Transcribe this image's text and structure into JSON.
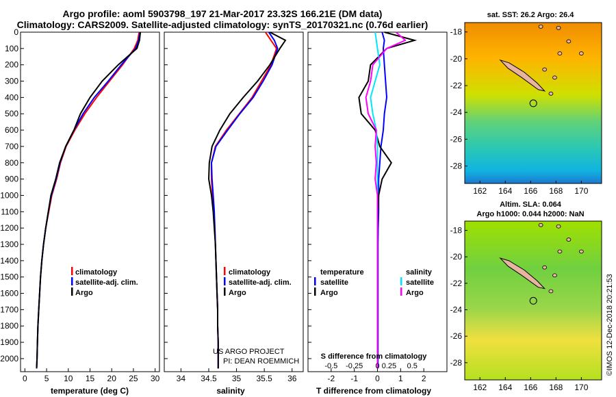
{
  "title_line1": "Argo profile: aoml 5903798_197 21-Mar-2017 23.32S 166.21E (DM data)",
  "title_line2": "Climatology: CARS2009. Satellite-adjusted climatology: synTS_20170321.nc (0.76d earlier)",
  "credit": "©IMOS 12-Dec-2018 20:21:53",
  "project": [
    "US ARGO PROJECT",
    "PI: DEAN ROEMMICH"
  ],
  "colors": {
    "climatology": "#ff0000",
    "satellite": "#0000ff",
    "argo": "#000000",
    "sat_salinity": "#00e5ff",
    "clim_salinity": "#ff00ff"
  },
  "legends": {
    "temperature": [
      "climatology",
      "satellite-adj. clim.",
      "Argo"
    ],
    "salinity": [
      "climatology",
      "satellite-adj. clim.",
      "Argo"
    ],
    "diff_left_title": "temperature",
    "diff_right_title": "salinity",
    "diff_left": [
      "satellite",
      "Argo"
    ],
    "diff_right": [
      "satellite",
      "Argo"
    ]
  },
  "diff_upper_xlabel": "S difference from climatology",
  "maps": {
    "top_title": "sat. SST: 26.2 Argo: 26.4",
    "bottom_title_1": "Altim. SLA: 0.064",
    "bottom_title_2": "Argo h1000: 0.044 h2000: NaN",
    "lon_ticks": [
      "162",
      "164",
      "166",
      "168",
      "170"
    ],
    "lat_ticks": [
      "-18",
      "-20",
      "-22",
      "-24",
      "-26",
      "-28"
    ],
    "float_lon": 166.21,
    "float_lat": -23.32
  },
  "chart_data": [
    {
      "type": "line",
      "xlabel": "temperature (deg C)",
      "ylabel": "",
      "xlim": [
        -1,
        31
      ],
      "ylim": [
        2080,
        0
      ],
      "xticks": [
        "0",
        "5",
        "10",
        "15",
        "20",
        "25",
        "30"
      ],
      "yticks": [
        "0",
        "100",
        "200",
        "300",
        "400",
        "500",
        "600",
        "700",
        "800",
        "900",
        "1000",
        "1100",
        "1200",
        "1300",
        "1400",
        "1500",
        "1600",
        "1700",
        "1800",
        "1900",
        "2000"
      ],
      "series": [
        {
          "name": "climatology",
          "color": "#ff0000",
          "x": [
            26.3,
            26.0,
            25.2,
            22.5,
            19.5,
            16.5,
            13.8,
            11.5,
            9.5,
            8.2,
            7.3,
            6.2,
            5.5,
            4.8,
            4.3,
            3.9,
            3.6,
            3.4,
            3.2,
            3.0,
            2.9,
            2.8,
            2.7
          ],
          "y": [
            0,
            50,
            100,
            200,
            300,
            400,
            500,
            600,
            700,
            800,
            900,
            1000,
            1100,
            1200,
            1300,
            1400,
            1500,
            1600,
            1700,
            1800,
            1900,
            2000,
            2060
          ]
        },
        {
          "name": "satellite-adj. clim.",
          "color": "#0000ff",
          "x": [
            26.5,
            26.2,
            25.5,
            22.2,
            19.2,
            16.0,
            13.4,
            11.3,
            9.4,
            8.1,
            7.2,
            6.1,
            5.4,
            4.8,
            4.3,
            3.9,
            3.6,
            3.4,
            3.2,
            3.0,
            2.9,
            2.8,
            2.7
          ],
          "y": [
            0,
            50,
            100,
            200,
            300,
            400,
            500,
            600,
            700,
            800,
            900,
            1000,
            1100,
            1200,
            1300,
            1400,
            1500,
            1600,
            1700,
            1800,
            1900,
            2000,
            2060
          ]
        },
        {
          "name": "Argo",
          "color": "#000000",
          "x": [
            26.6,
            26.4,
            25.8,
            21.5,
            17.8,
            15.0,
            12.8,
            11.3,
            9.4,
            8.0,
            7.1,
            6.0,
            5.4,
            4.8,
            4.3,
            3.9,
            3.6,
            3.4,
            3.2,
            3.0,
            2.9,
            2.8,
            2.7
          ],
          "y": [
            0,
            50,
            100,
            200,
            300,
            400,
            500,
            600,
            700,
            800,
            900,
            1000,
            1100,
            1200,
            1300,
            1400,
            1500,
            1600,
            1700,
            1800,
            1900,
            2000,
            2060
          ]
        }
      ]
    },
    {
      "type": "line",
      "xlabel": "salinity",
      "xlim": [
        33.7,
        36.2
      ],
      "ylim": [
        2080,
        0
      ],
      "xticks": [
        "34",
        "34.5",
        "35",
        "35.5",
        "36"
      ],
      "series": [
        {
          "name": "climatology",
          "color": "#ff0000",
          "x": [
            35.52,
            35.62,
            35.72,
            35.62,
            35.45,
            35.28,
            35.05,
            34.82,
            34.62,
            34.55,
            34.55,
            34.57,
            34.59,
            34.61,
            34.62,
            34.63,
            34.64,
            34.65,
            34.66,
            34.66,
            34.67,
            34.67,
            34.67
          ],
          "y": [
            0,
            50,
            100,
            200,
            300,
            400,
            500,
            600,
            700,
            800,
            900,
            1000,
            1100,
            1200,
            1300,
            1400,
            1500,
            1600,
            1700,
            1800,
            1900,
            2000,
            2060
          ]
        },
        {
          "name": "satellite-adj. clim.",
          "color": "#0000ff",
          "x": [
            35.58,
            35.68,
            35.74,
            35.64,
            35.48,
            35.3,
            35.06,
            34.84,
            34.63,
            34.55,
            34.56,
            34.58,
            34.6,
            34.61,
            34.62,
            34.63,
            34.64,
            34.65,
            34.66,
            34.66,
            34.67,
            34.67,
            34.67
          ],
          "y": [
            0,
            50,
            100,
            200,
            300,
            400,
            500,
            600,
            700,
            800,
            900,
            1000,
            1100,
            1200,
            1300,
            1400,
            1500,
            1600,
            1700,
            1800,
            1900,
            2000,
            2060
          ]
        },
        {
          "name": "Argo",
          "color": "#000000",
          "x": [
            35.6,
            35.88,
            35.78,
            35.6,
            35.38,
            35.12,
            34.88,
            34.7,
            34.56,
            34.51,
            34.5,
            34.55,
            34.58,
            34.6,
            34.62,
            34.63,
            34.64,
            34.65,
            34.66,
            34.66,
            34.67,
            34.67,
            34.67
          ],
          "y": [
            0,
            50,
            100,
            200,
            300,
            400,
            500,
            600,
            700,
            800,
            900,
            1000,
            1100,
            1200,
            1300,
            1400,
            1500,
            1600,
            1700,
            1800,
            1900,
            2000,
            2060
          ]
        }
      ]
    },
    {
      "type": "line",
      "xlabel": "T difference from climatology",
      "xlim": [
        -3,
        3
      ],
      "ylim": [
        2080,
        0
      ],
      "xticks": [
        "-2",
        "-1",
        "0",
        "1",
        "2"
      ],
      "upper_xticks": [
        "-0.5",
        "-0.25",
        "0",
        "0.25",
        "0.5"
      ],
      "series": [
        {
          "name": "temperature satellite",
          "color": "#0000ff",
          "x": [
            0.2,
            0.3,
            0.25,
            0.3,
            0.35,
            0.4,
            0.3,
            0.25,
            0.15,
            0.1,
            0.05,
            0.05,
            0.05,
            0.03,
            0.02,
            0.02,
            0.02,
            0.02,
            0.02,
            0.02,
            0.02,
            0.02,
            0.02
          ],
          "y": [
            0,
            50,
            100,
            200,
            300,
            400,
            500,
            600,
            700,
            800,
            900,
            1000,
            1100,
            1200,
            1300,
            1400,
            1500,
            1600,
            1700,
            1800,
            1900,
            2000,
            2060
          ]
        },
        {
          "name": "temperature Argo",
          "color": "#000000",
          "x": [
            0.3,
            1.6,
            0.4,
            -0.3,
            -0.4,
            -0.8,
            -0.7,
            -0.1,
            0.1,
            0.6,
            0.2,
            0.05,
            0.02,
            0.01,
            0.0,
            0.0,
            0.0,
            0.0,
            0.0,
            0.0,
            0.0,
            0.0,
            0.0
          ],
          "y": [
            0,
            50,
            100,
            200,
            300,
            400,
            500,
            600,
            700,
            800,
            900,
            1000,
            1100,
            1200,
            1300,
            1400,
            1500,
            1600,
            1700,
            1800,
            1900,
            2000,
            2060
          ]
        },
        {
          "name": "salinity satellite",
          "color": "#00e5ff",
          "x": [
            -0.1,
            -0.05,
            0.0,
            0.1,
            -0.1,
            -0.3,
            -0.2,
            -0.05,
            0.0,
            0.0,
            0.0,
            0.0,
            0.0,
            0.0,
            0.0,
            0.0,
            0.0,
            0.0,
            0.0,
            0.0,
            0.0,
            0.0,
            0.0
          ],
          "y": [
            0,
            50,
            100,
            200,
            300,
            400,
            500,
            600,
            700,
            800,
            900,
            1000,
            1100,
            1200,
            1300,
            1400,
            1500,
            1600,
            1700,
            1800,
            1900,
            2000,
            2060
          ]
        },
        {
          "name": "salinity Argo",
          "color": "#ff00ff",
          "x": [
            0.8,
            1.2,
            0.4,
            -0.2,
            -0.3,
            -0.5,
            -0.4,
            -0.05,
            -0.1,
            -0.05,
            -0.1,
            0.0,
            0.0,
            0.0,
            0.0,
            0.0,
            0.0,
            0.0,
            0.0,
            0.0,
            0.0,
            0.0,
            0.0
          ],
          "y": [
            0,
            50,
            100,
            200,
            300,
            400,
            500,
            600,
            700,
            800,
            900,
            1000,
            1100,
            1200,
            1300,
            1400,
            1500,
            1600,
            1700,
            1800,
            1900,
            2000,
            2060
          ]
        }
      ]
    }
  ]
}
